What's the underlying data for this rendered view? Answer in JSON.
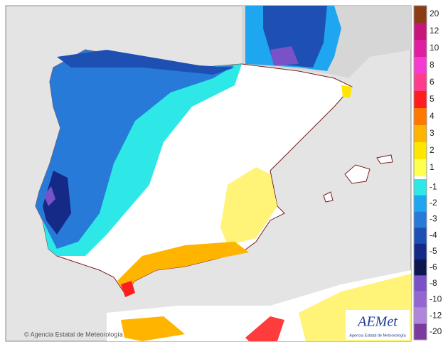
{
  "legend": {
    "labels": [
      20,
      12,
      10,
      8,
      6,
      5,
      4,
      3,
      2,
      1,
      -1,
      -2,
      -3,
      -4,
      -5,
      -6,
      -8,
      -10,
      -12,
      -20
    ],
    "colors": [
      "#8b3c14",
      "#c8157a",
      "#e01ea0",
      "#f53cd2",
      "#ff3c8c",
      "#ff1e1e",
      "#ff7800",
      "#ffb400",
      "#ffe600",
      "#ffff50",
      "#2ee8e8",
      "#1ea6f0",
      "#287ad8",
      "#1e50b4",
      "#142a86",
      "#0c1650",
      "#7a52c8",
      "#9466d2",
      "#b086dc",
      "#7a3aa0"
    ]
  },
  "footer": {
    "copyright": "© Agencia Estatal de Meteorología"
  },
  "logo": {
    "name": "AEMet",
    "subtitle": "Agencia Estatal de Meteorología"
  }
}
